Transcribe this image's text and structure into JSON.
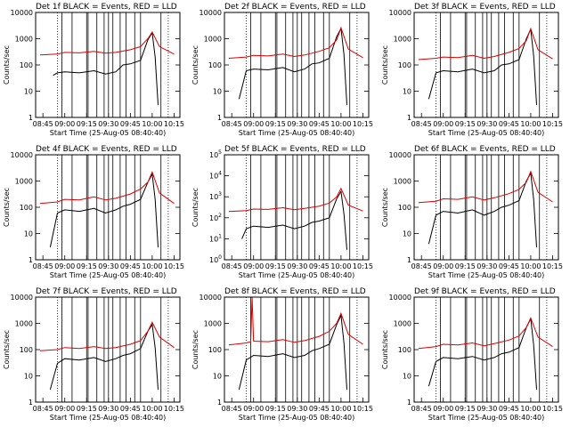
{
  "figure": {
    "xlabel": "Start Time (25-Aug-05 08:40:40)"
  },
  "colors": {
    "events": "#000000",
    "lld": "#dd0000",
    "axis": "#000000"
  },
  "chart_data": [
    {
      "type": "line",
      "title": "Det 1f BLACK = Events, RED = LLD",
      "xlabel": "Start Time (25-Aug-05 08:40:40)",
      "ylabel": "Counts/sec",
      "y_scale": "log",
      "xticks": [
        "08:45",
        "09:00",
        "09:15",
        "09:30",
        "09:45",
        "10:00",
        "10:15"
      ],
      "yticks": [
        "1",
        "10",
        "100",
        "1000",
        "10000"
      ],
      "ylim": [
        1,
        10000
      ],
      "series": [
        {
          "name": "Events",
          "x": [
            "08:52",
            "08:55",
            "09:00",
            "09:10",
            "09:20",
            "09:28",
            "09:35",
            "09:40",
            "09:45",
            "09:52",
            "09:57",
            "10:00",
            "10:02",
            "10:04"
          ],
          "values": [
            40,
            50,
            55,
            50,
            60,
            45,
            55,
            100,
            110,
            150,
            900,
            1700,
            200,
            3
          ]
        },
        {
          "name": "LLD",
          "x": [
            "08:43",
            "08:55",
            "09:00",
            "09:10",
            "09:20",
            "09:28",
            "09:35",
            "09:45",
            "09:52",
            "09:57",
            "10:00",
            "10:05",
            "10:15"
          ],
          "values": [
            240,
            260,
            300,
            290,
            330,
            280,
            300,
            380,
            500,
            1000,
            1800,
            500,
            260
          ]
        }
      ]
    },
    {
      "type": "line",
      "title": "Det 2f BLACK = Events, RED = LLD",
      "xlabel": "Start Time (25-Aug-05 08:40:40)",
      "ylabel": "Counts/sec",
      "y_scale": "log",
      "xticks": [
        "08:45",
        "09:00",
        "09:15",
        "09:30",
        "09:45",
        "10:00",
        "10:15"
      ],
      "yticks": [
        "1",
        "10",
        "100",
        "1000",
        "10000"
      ],
      "ylim": [
        1,
        10000
      ],
      "series": [
        {
          "name": "Events",
          "x": [
            "08:50",
            "08:55",
            "09:00",
            "09:10",
            "09:20",
            "09:28",
            "09:35",
            "09:40",
            "09:45",
            "09:52",
            "09:57",
            "10:00",
            "10:02",
            "10:04"
          ],
          "values": [
            5,
            60,
            70,
            65,
            80,
            55,
            70,
            110,
            120,
            180,
            1200,
            2500,
            250,
            3
          ]
        },
        {
          "name": "LLD",
          "x": [
            "08:43",
            "08:55",
            "09:00",
            "09:10",
            "09:20",
            "09:28",
            "09:35",
            "09:45",
            "09:52",
            "09:57",
            "10:00",
            "10:05",
            "10:15"
          ],
          "values": [
            180,
            200,
            230,
            220,
            260,
            210,
            240,
            330,
            450,
            900,
            2600,
            400,
            190
          ]
        }
      ]
    },
    {
      "type": "line",
      "title": "Det 3f BLACK = Events, RED = LLD",
      "xlabel": "Start Time (25-Aug-05 08:40:40)",
      "ylabel": "Counts/sec",
      "y_scale": "log",
      "xticks": [
        "08:45",
        "09:00",
        "09:15",
        "09:30",
        "09:45",
        "10:00",
        "10:15"
      ],
      "yticks": [
        "1",
        "10",
        "100",
        "1000",
        "10000"
      ],
      "ylim": [
        1,
        10000
      ],
      "series": [
        {
          "name": "Events",
          "x": [
            "08:50",
            "08:55",
            "09:00",
            "09:10",
            "09:20",
            "09:28",
            "09:35",
            "09:40",
            "09:45",
            "09:52",
            "09:57",
            "10:00",
            "10:02",
            "10:04"
          ],
          "values": [
            5,
            50,
            60,
            55,
            70,
            50,
            60,
            100,
            110,
            160,
            1000,
            2300,
            220,
            3
          ]
        },
        {
          "name": "LLD",
          "x": [
            "08:43",
            "08:55",
            "09:00",
            "09:10",
            "09:20",
            "09:28",
            "09:35",
            "09:45",
            "09:52",
            "09:57",
            "10:00",
            "10:05",
            "10:15"
          ],
          "values": [
            160,
            180,
            200,
            190,
            230,
            180,
            210,
            300,
            420,
            850,
            2400,
            380,
            170
          ]
        }
      ]
    },
    {
      "type": "line",
      "title": "Det 4f BLACK = Events, RED = LLD",
      "xlabel": "Start Time (25-Aug-05 08:40:40)",
      "ylabel": "Counts/sec",
      "y_scale": "log",
      "xticks": [
        "08:45",
        "09:00",
        "09:15",
        "09:30",
        "09:45",
        "10:00",
        "10:15"
      ],
      "yticks": [
        "1",
        "10",
        "100",
        "1000",
        "10000"
      ],
      "ylim": [
        1,
        10000
      ],
      "series": [
        {
          "name": "Events",
          "x": [
            "08:50",
            "08:55",
            "09:00",
            "09:10",
            "09:20",
            "09:28",
            "09:35",
            "09:40",
            "09:45",
            "09:52",
            "09:57",
            "10:00",
            "10:02",
            "10:04"
          ],
          "values": [
            3,
            60,
            80,
            70,
            90,
            60,
            80,
            110,
            130,
            200,
            900,
            1800,
            200,
            3
          ]
        },
        {
          "name": "LLD",
          "x": [
            "08:43",
            "08:55",
            "09:00",
            "09:10",
            "09:20",
            "09:28",
            "09:35",
            "09:45",
            "09:52",
            "09:57",
            "10:00",
            "10:05",
            "10:15"
          ],
          "values": [
            140,
            160,
            200,
            190,
            250,
            190,
            220,
            320,
            500,
            900,
            2200,
            350,
            140
          ]
        }
      ]
    },
    {
      "type": "line",
      "title": "Det 5f BLACK = Events, RED = LLD",
      "xlabel": "Start Time (25-Aug-05 08:40:40)",
      "ylabel": "Counts/sec",
      "y_scale": "log",
      "xticks": [
        "08:45",
        "09:00",
        "09:15",
        "09:30",
        "09:45",
        "10:00",
        "10:15"
      ],
      "yticks": [
        "10^0",
        "10^1",
        "10^2",
        "10^3",
        "10^4",
        "10^5"
      ],
      "ylim": [
        1,
        100000
      ],
      "series": [
        {
          "name": "Events",
          "x": [
            "08:52",
            "08:55",
            "09:00",
            "09:10",
            "09:20",
            "09:28",
            "09:35",
            "09:40",
            "09:45",
            "09:52",
            "09:57",
            "10:00",
            "10:02",
            "10:04"
          ],
          "values": [
            10,
            30,
            40,
            35,
            45,
            30,
            40,
            60,
            70,
            100,
            800,
            1800,
            150,
            3
          ]
        },
        {
          "name": "LLD",
          "x": [
            "08:43",
            "08:55",
            "09:00",
            "09:10",
            "09:20",
            "09:28",
            "09:35",
            "09:45",
            "09:52",
            "09:57",
            "10:00",
            "10:05",
            "10:15"
          ],
          "values": [
            200,
            220,
            260,
            250,
            300,
            240,
            280,
            360,
            500,
            1000,
            2500,
            400,
            210
          ]
        }
      ]
    },
    {
      "type": "line",
      "title": "Det 6f BLACK = Events, RED = LLD",
      "xlabel": "Start Time (25-Aug-05 08:40:40)",
      "ylabel": "Counts/sec",
      "y_scale": "log",
      "xticks": [
        "08:45",
        "09:00",
        "09:15",
        "09:30",
        "09:45",
        "10:00",
        "10:15"
      ],
      "yticks": [
        "1",
        "10",
        "100",
        "1000",
        "10000"
      ],
      "ylim": [
        1,
        10000
      ],
      "series": [
        {
          "name": "Events",
          "x": [
            "08:50",
            "08:55",
            "09:00",
            "09:10",
            "09:20",
            "09:28",
            "09:35",
            "09:40",
            "09:45",
            "09:52",
            "09:57",
            "10:00",
            "10:02",
            "10:04"
          ],
          "values": [
            4,
            50,
            70,
            60,
            80,
            50,
            70,
            100,
            120,
            180,
            1000,
            2000,
            200,
            3
          ]
        },
        {
          "name": "LLD",
          "x": [
            "08:43",
            "08:55",
            "09:00",
            "09:10",
            "09:20",
            "09:28",
            "09:35",
            "09:45",
            "09:52",
            "09:57",
            "10:00",
            "10:05",
            "10:15"
          ],
          "values": [
            150,
            170,
            210,
            200,
            250,
            190,
            230,
            330,
            480,
            900,
            2300,
            370,
            160
          ]
        }
      ]
    },
    {
      "type": "line",
      "title": "Det 7f BLACK = Events, RED = LLD",
      "xlabel": "Start Time (25-Aug-05 08:40:40)",
      "ylabel": "Counts/sec",
      "y_scale": "log",
      "xticks": [
        "08:45",
        "09:00",
        "09:15",
        "09:30",
        "09:45",
        "10:00",
        "10:15"
      ],
      "yticks": [
        "1",
        "10",
        "100",
        "1000",
        "10000"
      ],
      "ylim": [
        1,
        10000
      ],
      "series": [
        {
          "name": "Events",
          "x": [
            "08:50",
            "08:55",
            "09:00",
            "09:10",
            "09:20",
            "09:28",
            "09:35",
            "09:40",
            "09:45",
            "09:52",
            "09:57",
            "10:00",
            "10:02",
            "10:04"
          ],
          "values": [
            3,
            30,
            45,
            40,
            50,
            35,
            45,
            60,
            70,
            110,
            500,
            900,
            120,
            3
          ]
        },
        {
          "name": "LLD",
          "x": [
            "08:43",
            "08:55",
            "09:00",
            "09:10",
            "09:20",
            "09:28",
            "09:35",
            "09:45",
            "09:52",
            "09:57",
            "10:00",
            "10:05",
            "10:15"
          ],
          "values": [
            90,
            100,
            120,
            110,
            130,
            110,
            120,
            160,
            220,
            500,
            1100,
            300,
            120
          ]
        }
      ]
    },
    {
      "type": "line",
      "title": "Det 8f BLACK = Events, RED = LLD",
      "xlabel": "Start Time (25-Aug-05 08:40:40)",
      "ylabel": "Counts/sec",
      "y_scale": "log",
      "xticks": [
        "08:45",
        "09:00",
        "09:15",
        "09:30",
        "09:45",
        "10:00",
        "10:15"
      ],
      "yticks": [
        "1",
        "10",
        "100",
        "1000",
        "10000"
      ],
      "ylim": [
        1,
        10000
      ],
      "series": [
        {
          "name": "Events",
          "x": [
            "08:50",
            "08:55",
            "09:00",
            "09:10",
            "09:20",
            "09:28",
            "09:35",
            "09:40",
            "09:45",
            "09:52",
            "09:57",
            "10:00",
            "10:02",
            "10:04"
          ],
          "values": [
            3,
            40,
            60,
            55,
            70,
            50,
            60,
            90,
            110,
            160,
            900,
            2000,
            180,
            3
          ]
        },
        {
          "name": "LLD",
          "x": [
            "08:43",
            "08:55",
            "08:58",
            "08:59",
            "09:00",
            "09:10",
            "09:20",
            "09:28",
            "09:35",
            "09:45",
            "09:52",
            "09:57",
            "10:00",
            "10:05",
            "10:15"
          ],
          "values": [
            150,
            180,
            200,
            10000,
            210,
            200,
            240,
            190,
            220,
            320,
            500,
            1000,
            2400,
            380,
            160
          ]
        }
      ]
    },
    {
      "type": "line",
      "title": "Det 9f BLACK = Events, RED = LLD",
      "xlabel": "Start Time (25-Aug-05 08:40:40)",
      "ylabel": "Counts/sec",
      "y_scale": "log",
      "xticks": [
        "08:45",
        "09:00",
        "09:15",
        "09:30",
        "09:45",
        "10:00",
        "10:15"
      ],
      "yticks": [
        "1",
        "10",
        "100",
        "1000",
        "10000"
      ],
      "ylim": [
        1,
        10000
      ],
      "series": [
        {
          "name": "Events",
          "x": [
            "08:50",
            "08:55",
            "09:00",
            "09:10",
            "09:20",
            "09:28",
            "09:35",
            "09:40",
            "09:45",
            "09:52",
            "09:57",
            "10:00",
            "10:02",
            "10:04"
          ],
          "values": [
            4,
            35,
            50,
            45,
            55,
            40,
            50,
            70,
            80,
            120,
            700,
            1500,
            150,
            3
          ]
        },
        {
          "name": "LLD",
          "x": [
            "08:43",
            "08:55",
            "09:00",
            "09:10",
            "09:20",
            "09:28",
            "09:35",
            "09:45",
            "09:52",
            "09:57",
            "10:00",
            "10:05",
            "10:15"
          ],
          "values": [
            110,
            130,
            160,
            150,
            180,
            140,
            170,
            230,
            330,
            700,
            1600,
            300,
            130
          ]
        }
      ]
    }
  ]
}
